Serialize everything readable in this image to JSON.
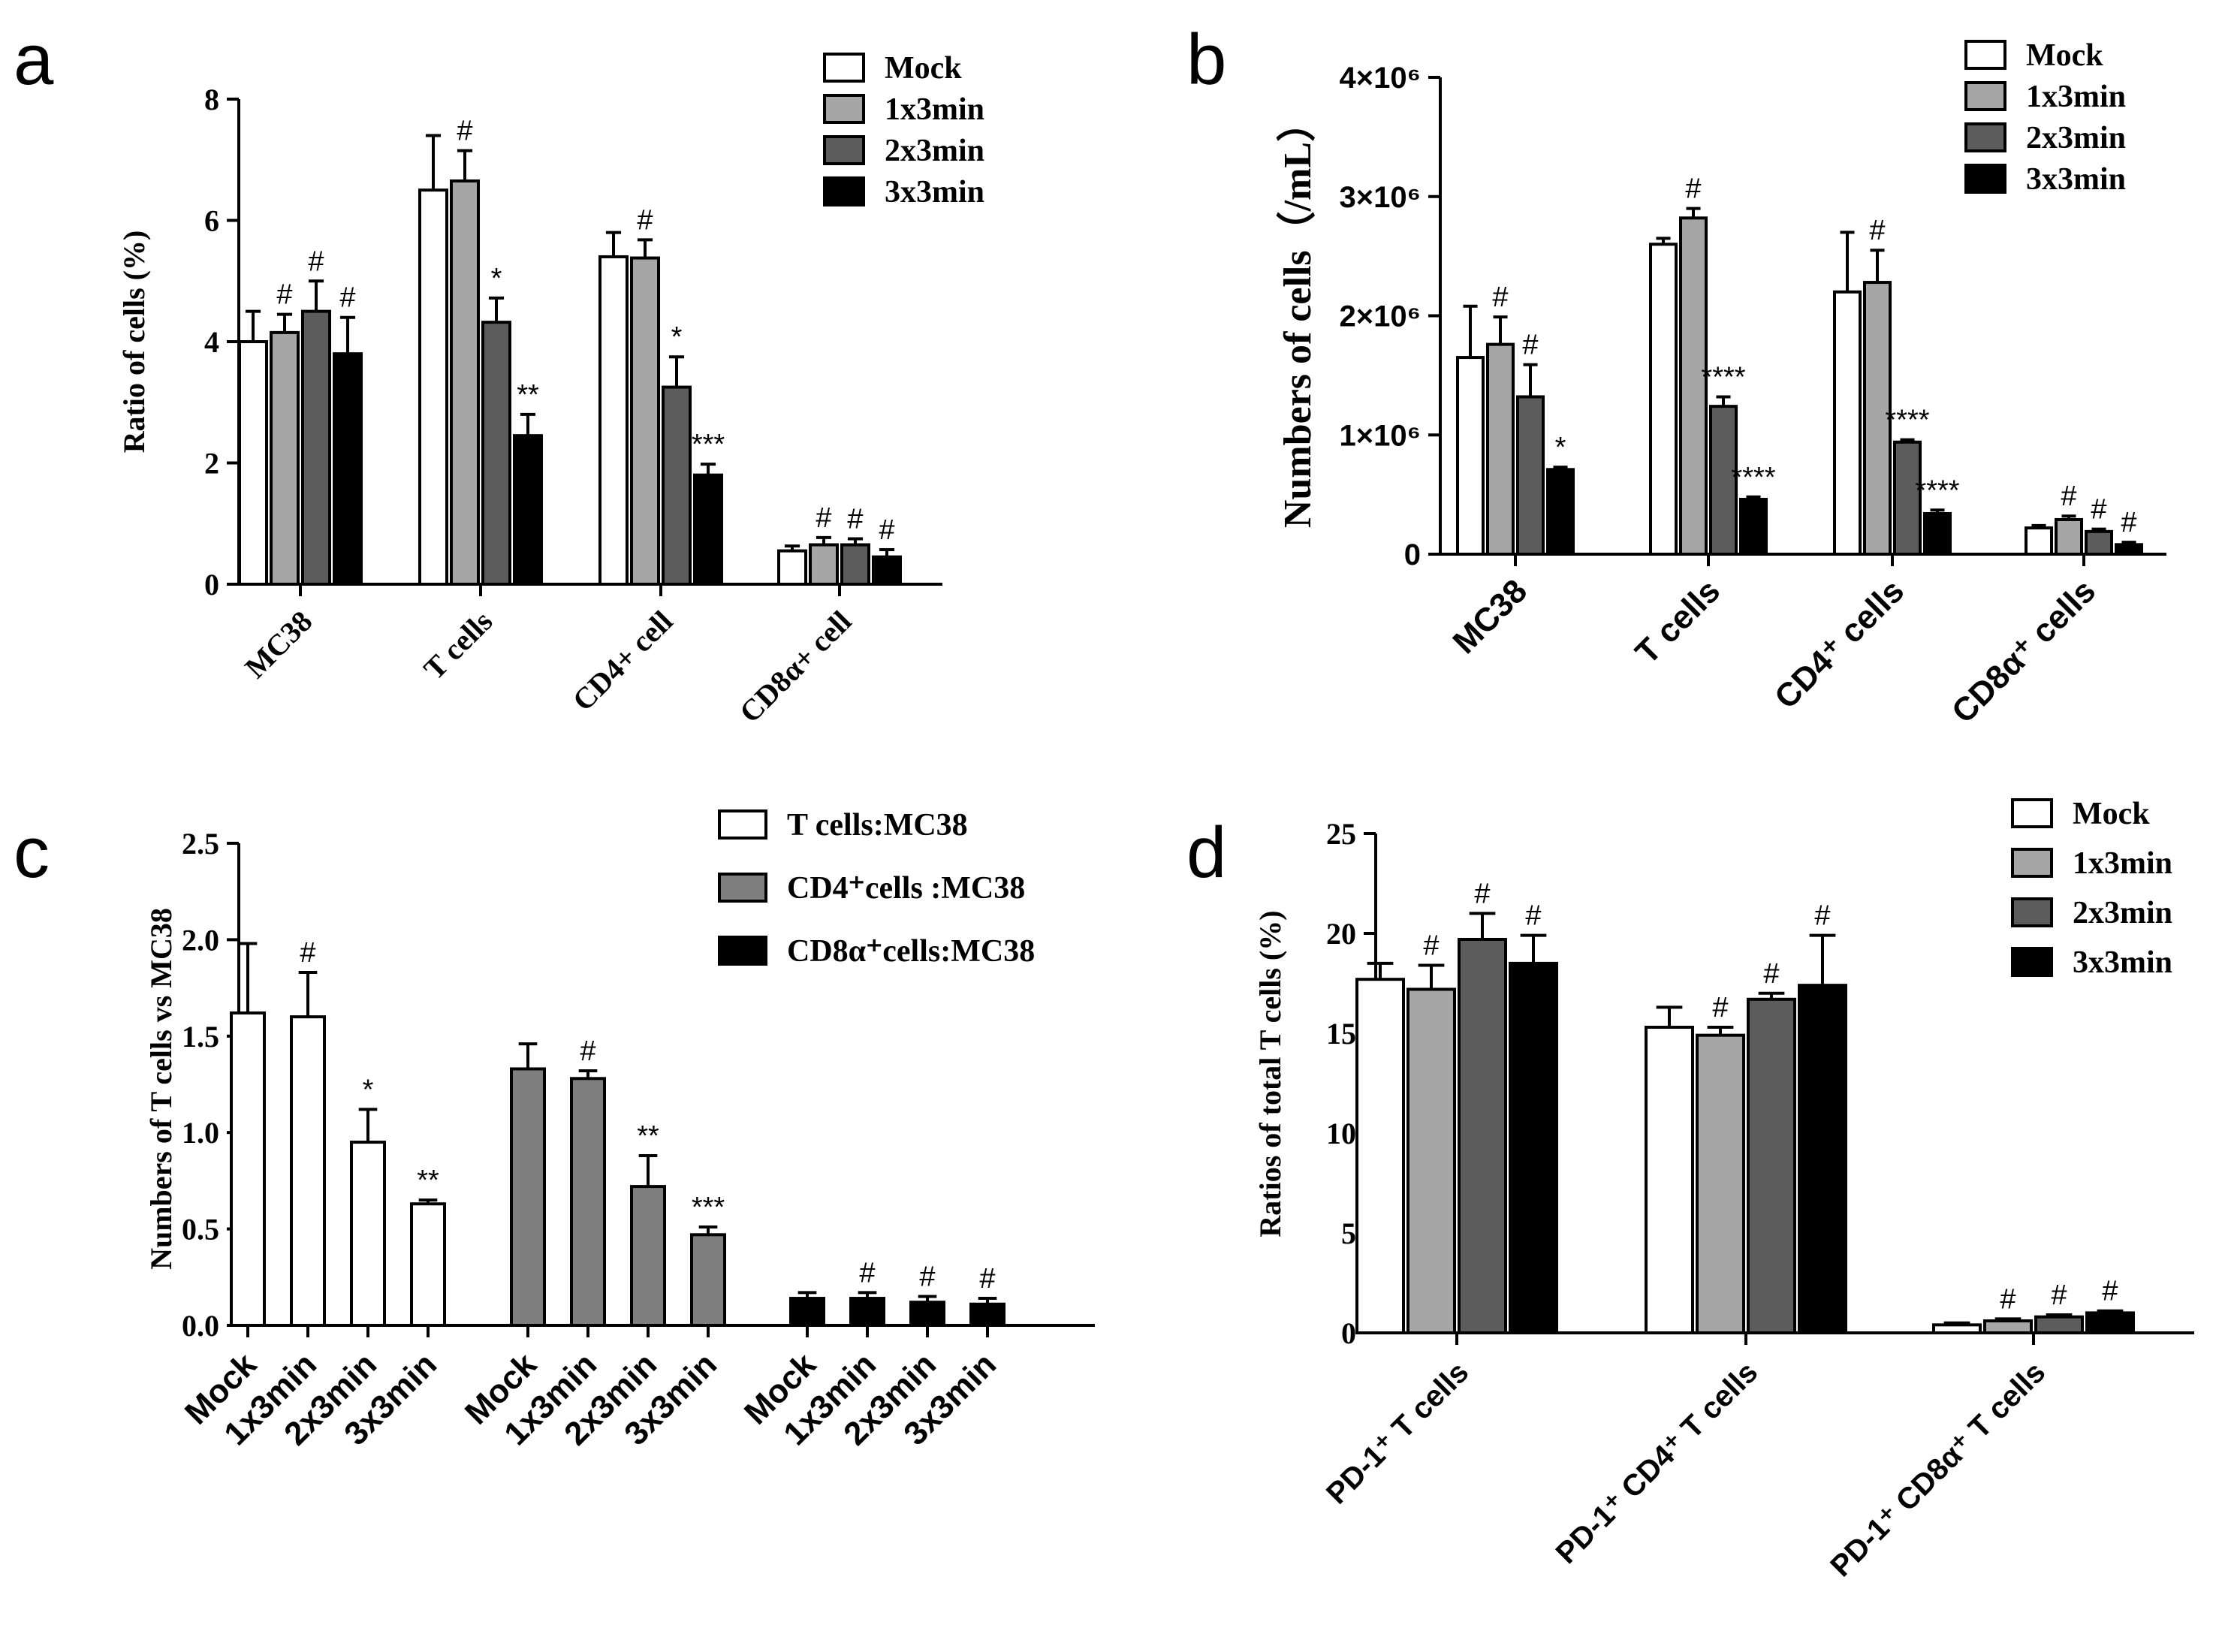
{
  "colors": {
    "mock": "#ffffff",
    "g1": "#a6a6a6",
    "g2": "#5c5c5c",
    "g3": "#000000",
    "tcells": "#ffffff",
    "cd4": "#7f7f7f",
    "cd8": "#000000"
  },
  "chart_data": [
    {
      "panel": "a",
      "type": "bar",
      "ylabel": "Ratio of cells (%)",
      "ylim": [
        0,
        8
      ],
      "yticks": [
        "0",
        "2",
        "4",
        "6",
        "8"
      ],
      "categories": [
        "MC38",
        "T cells",
        "CD4+ cell",
        "CD8α+ cell"
      ],
      "legend": [
        "Mock",
        "1x3min",
        "2x3min",
        "3x3min"
      ],
      "series": [
        {
          "name": "Mock",
          "values": [
            4.0,
            6.5,
            5.4,
            0.55
          ],
          "errors": [
            0.5,
            0.9,
            0.4,
            0.08
          ],
          "annotations": [
            "",
            "",
            "",
            ""
          ]
        },
        {
          "name": "1x3min",
          "values": [
            4.15,
            6.65,
            5.38,
            0.65
          ],
          "errors": [
            0.3,
            0.5,
            0.3,
            0.12
          ],
          "annotations": [
            "#",
            "#",
            "#",
            "#"
          ]
        },
        {
          "name": "2x3min",
          "values": [
            4.5,
            4.32,
            3.25,
            0.65
          ],
          "errors": [
            0.5,
            0.4,
            0.5,
            0.1
          ],
          "annotations": [
            "#",
            "*",
            "*",
            "#"
          ]
        },
        {
          "name": "3x3min",
          "values": [
            3.8,
            2.45,
            1.8,
            0.45
          ],
          "errors": [
            0.6,
            0.35,
            0.18,
            0.12
          ],
          "annotations": [
            "#",
            "**",
            "***",
            "#"
          ]
        }
      ]
    },
    {
      "panel": "b",
      "type": "bar",
      "ylabel": "Numbers of cells（/mL）",
      "ylim": [
        0,
        4000000
      ],
      "yticks": [
        "0",
        "1×10⁶",
        "2×10⁶",
        "3×10⁶",
        "4×10⁶"
      ],
      "categories": [
        "MC38",
        "T cells",
        "CD4⁺ cells",
        "CD8α⁺ cells"
      ],
      "legend": [
        "Mock",
        "1x3min",
        "2x3min",
        "3x3min"
      ],
      "series": [
        {
          "name": "Mock",
          "values": [
            1650000,
            2600000,
            2200000,
            220000
          ],
          "errors": [
            430000,
            50000,
            500000,
            20000
          ],
          "annotations": [
            "",
            "",
            "",
            ""
          ]
        },
        {
          "name": "1x3min",
          "values": [
            1760000,
            2820000,
            2280000,
            290000
          ],
          "errors": [
            230000,
            80000,
            270000,
            30000
          ],
          "annotations": [
            "#",
            "#",
            "#",
            "#"
          ]
        },
        {
          "name": "2x3min",
          "values": [
            1320000,
            1240000,
            940000,
            190000
          ],
          "errors": [
            270000,
            80000,
            20000,
            20000
          ],
          "annotations": [
            "#",
            "****",
            "****",
            "#"
          ]
        },
        {
          "name": "3x3min",
          "values": [
            710000,
            460000,
            340000,
            80000
          ],
          "errors": [
            20000,
            20000,
            30000,
            20000
          ],
          "annotations": [
            "*",
            "****",
            "****",
            "#"
          ]
        }
      ]
    },
    {
      "panel": "c",
      "type": "bar",
      "ylabel": "Numbers of T cells vs MC38",
      "ylim": [
        0,
        2.5
      ],
      "yticks": [
        "0.0",
        "0.5",
        "1.0",
        "1.5",
        "2.0",
        "2.5"
      ],
      "categories": [
        "Mock",
        "1x3min",
        "2x3min",
        "3x3min"
      ],
      "legend": [
        "T cells:MC38",
        "CD4⁺cells :MC38",
        "CD8α⁺cells:MC38"
      ],
      "series": [
        {
          "name": "T cells:MC38",
          "values": [
            1.62,
            1.6,
            0.95,
            0.63
          ],
          "errors": [
            0.36,
            0.23,
            0.17,
            0.02
          ],
          "annotations": [
            "",
            "#",
            "*",
            "**"
          ]
        },
        {
          "name": "CD4+cells :MC38",
          "values": [
            1.33,
            1.28,
            0.72,
            0.47
          ],
          "errors": [
            0.13,
            0.04,
            0.16,
            0.04
          ],
          "annotations": [
            "",
            "#",
            "**",
            "***"
          ]
        },
        {
          "name": "CD8α+cells:MC38",
          "values": [
            0.14,
            0.14,
            0.12,
            0.11
          ],
          "errors": [
            0.03,
            0.03,
            0.03,
            0.03
          ],
          "annotations": [
            "",
            "#",
            "#",
            "#"
          ]
        }
      ]
    },
    {
      "panel": "d",
      "type": "bar",
      "ylabel": "Ratios of total T cells (%)",
      "ylim": [
        0,
        25
      ],
      "yticks": [
        "0",
        "5",
        "10",
        "15",
        "20",
        "25"
      ],
      "categories": [
        "PD-1⁺ T cells",
        "PD-1⁺ CD4⁺ T cells",
        "PD-1⁺ CD8α⁺ T cells"
      ],
      "legend": [
        "Mock",
        "1x3min",
        "2x3min",
        "3x3min"
      ],
      "series": [
        {
          "name": "Mock",
          "values": [
            17.7,
            15.3,
            0.4
          ],
          "errors": [
            0.8,
            1.0,
            0.1
          ],
          "annotations": [
            "",
            "",
            ""
          ]
        },
        {
          "name": "1x3min",
          "values": [
            17.2,
            14.9,
            0.6
          ],
          "errors": [
            1.2,
            0.4,
            0.1
          ],
          "annotations": [
            "#",
            "#",
            "#"
          ]
        },
        {
          "name": "2x3min",
          "values": [
            19.7,
            16.7,
            0.8
          ],
          "errors": [
            1.3,
            0.3,
            0.1
          ],
          "annotations": [
            "#",
            "#",
            "#"
          ]
        },
        {
          "name": "3x3min",
          "values": [
            18.5,
            17.4,
            1.0
          ],
          "errors": [
            1.4,
            2.5,
            0.1
          ],
          "annotations": [
            "#",
            "#",
            "#"
          ]
        }
      ]
    }
  ]
}
